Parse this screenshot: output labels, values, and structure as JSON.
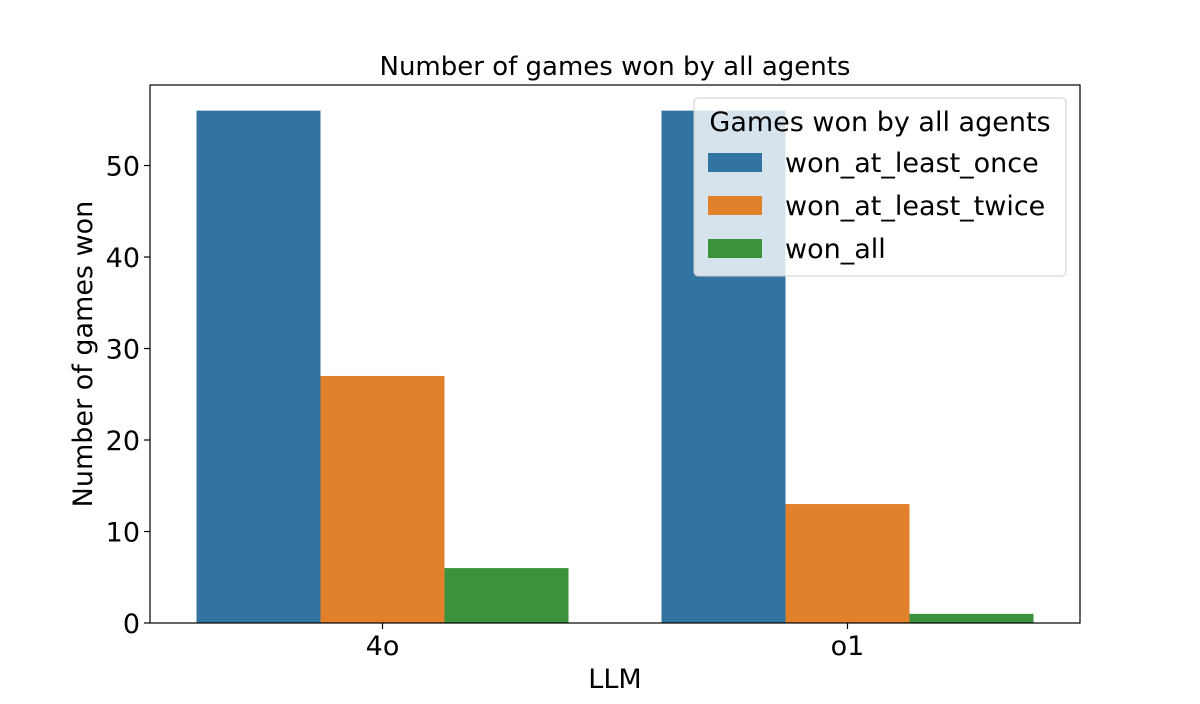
{
  "chart_data": {
    "type": "bar",
    "title": "Number of games won by all agents",
    "xlabel": "LLM",
    "ylabel": "Number of games won",
    "categories": [
      "4o",
      "o1"
    ],
    "series": [
      {
        "name": "won_at_least_once",
        "color": "#3274a1",
        "values": [
          56,
          56
        ]
      },
      {
        "name": "won_at_least_twice",
        "color": "#e1812c",
        "values": [
          27,
          13
        ]
      },
      {
        "name": "won_all",
        "color": "#3a923a",
        "values": [
          6,
          1
        ]
      }
    ],
    "ylim": [
      0,
      58.8
    ],
    "yticks": [
      0,
      10,
      20,
      30,
      40,
      50
    ],
    "grid": false,
    "legend": {
      "title": "Games won by all agents",
      "placement": "top-right"
    }
  }
}
